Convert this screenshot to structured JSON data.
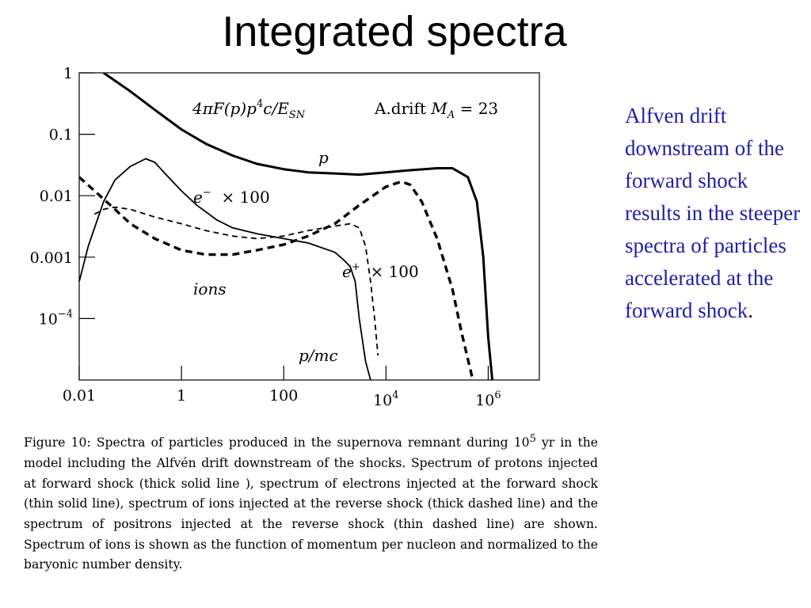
{
  "slide_title": "Integrated spectra",
  "side_note": "Alfven drift downstream of the forward shock results in the steeper spectra of particles accelerated at the forward shock",
  "side_note_period": ".",
  "caption": {
    "part1": "Figure 10: Spectra of particles produced in the supernova remnant during 10",
    "sup": "5",
    "part2": " yr in the model including the Alfvén drift downstream of the shocks. Spectrum of protons injected at forward shock (thick solid line ), spectrum of electrons injected at the forward shock (thin solid line), spectrum of ions injected at the reverse shock (thick dashed line) and the spectrum of positrons injected at the reverse shock (thin dashed line) are shown. Spectrum of ions is shown as the function of momentum per nucleon and normalized to the baryonic number density."
  },
  "chart_data": {
    "type": "line",
    "x_scale": "log",
    "y_scale": "log",
    "xlim": [
      0.01,
      10000000
    ],
    "ylim": [
      1e-05,
      1
    ],
    "xlabel": "p/mc",
    "ylabel": "",
    "grid": false,
    "x_ticks": [
      {
        "value": 0.01,
        "label": "0.01"
      },
      {
        "value": 1,
        "label": "1"
      },
      {
        "value": 100,
        "label": "100"
      },
      {
        "value": 10000,
        "label": "10",
        "sup": "4"
      },
      {
        "value": 1000000,
        "label": "10",
        "sup": "6"
      }
    ],
    "y_ticks": [
      {
        "value": 1,
        "label": "1"
      },
      {
        "value": 0.1,
        "label": "0.1"
      },
      {
        "value": 0.01,
        "label": "0.01"
      },
      {
        "value": 0.001,
        "label": "0.001"
      },
      {
        "value": 0.0001,
        "label": "10",
        "sup": "−4"
      }
    ],
    "annotations": {
      "quantity": {
        "a": "4πF(p)p",
        "b": "4",
        "c": "c/E",
        "d": "SN"
      },
      "model": {
        "a": "A.drift ",
        "b": "M",
        "c": "A",
        "d": " = 23"
      },
      "protons": "p",
      "electrons": {
        "a": "e",
        "b": "−",
        "c": "  × 100"
      },
      "positrons": {
        "a": "e",
        "b": "+",
        "c": "  × 100"
      },
      "ions": "ions"
    },
    "series": [
      {
        "style": "thick-solid",
        "x": [
          0.03,
          0.1,
          0.3,
          1,
          3,
          10,
          30,
          100,
          300,
          1000,
          3000,
          10000,
          30000,
          100000,
          200000,
          400000,
          600000,
          800000,
          1000000,
          1200000
        ],
        "y": [
          1,
          0.5,
          0.25,
          0.12,
          0.07,
          0.045,
          0.033,
          0.027,
          0.024,
          0.023,
          0.022,
          0.024,
          0.026,
          0.028,
          0.028,
          0.02,
          0.008,
          0.001,
          5e-05,
          1e-05
        ]
      },
      {
        "style": "thin-solid",
        "x": [
          0.01,
          0.015,
          0.02,
          0.03,
          0.05,
          0.1,
          0.2,
          0.3,
          0.5,
          1,
          2,
          5,
          10,
          30,
          100,
          300,
          1000,
          1500,
          2000,
          2500,
          3000,
          4000,
          5000
        ],
        "y": [
          0.0004,
          0.0015,
          0.003,
          0.008,
          0.018,
          0.03,
          0.04,
          0.035,
          0.022,
          0.012,
          0.007,
          0.004,
          0.003,
          0.0024,
          0.002,
          0.0017,
          0.0012,
          0.0009,
          0.0007,
          0.0004,
          0.0001,
          2e-05,
          1e-05
        ]
      },
      {
        "style": "thick-dashed",
        "x": [
          0.01,
          0.02,
          0.05,
          0.1,
          0.3,
          1,
          3,
          10,
          30,
          100,
          300,
          1000,
          3000,
          10000,
          20000,
          30000,
          50000,
          100000,
          200000,
          300000,
          500000
        ],
        "y": [
          0.02,
          0.012,
          0.006,
          0.0035,
          0.002,
          0.0013,
          0.0011,
          0.0011,
          0.0013,
          0.0016,
          0.0022,
          0.0035,
          0.007,
          0.014,
          0.017,
          0.015,
          0.008,
          0.002,
          0.0003,
          6e-05,
          1e-05
        ]
      },
      {
        "style": "thin-dashed",
        "x": [
          0.02,
          0.03,
          0.05,
          0.1,
          0.2,
          0.3,
          1,
          3,
          10,
          30,
          100,
          300,
          1000,
          2000,
          3000,
          4000,
          5000,
          6000,
          7000
        ],
        "y": [
          0.005,
          0.006,
          0.0065,
          0.006,
          0.005,
          0.0045,
          0.0035,
          0.0027,
          0.0022,
          0.002,
          0.0022,
          0.0027,
          0.0032,
          0.0035,
          0.003,
          0.0015,
          0.0004,
          0.0001,
          2.5e-05
        ]
      }
    ]
  }
}
